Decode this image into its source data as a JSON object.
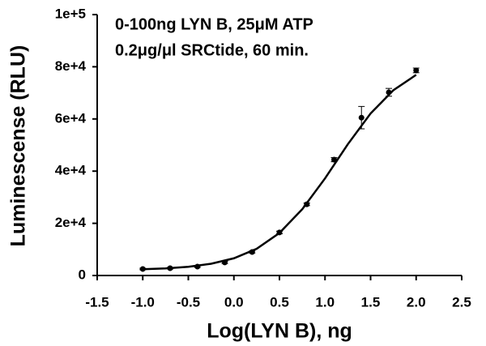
{
  "chart_data": {
    "type": "scatter",
    "annotations": [
      "0-100ng LYN B, 25μM ATP",
      "0.2μg/μl SRCtide, 60 min."
    ],
    "x_label": "Log(LYN B), ng",
    "y_label": "Luminescense (RLU)",
    "color": "#000000",
    "series": [
      {
        "x": [
          -1.0,
          -0.7,
          -0.4,
          -0.1,
          0.2,
          0.5,
          0.8,
          1.1,
          1.4,
          1.7,
          2.0
        ],
        "values": [
          2500,
          2800,
          3400,
          5000,
          9000,
          16500,
          27300,
          44400,
          60500,
          70200,
          78600
        ],
        "errors": [
          300,
          300,
          300,
          400,
          400,
          500,
          500,
          800,
          4300,
          1500,
          900
        ]
      }
    ],
    "fit": {
      "x": [
        -1.0,
        -0.75,
        -0.5,
        -0.25,
        0.0,
        0.25,
        0.5,
        0.75,
        1.0,
        1.25,
        1.5,
        1.75,
        2.0
      ],
      "values": [
        2400,
        2700,
        3350,
        4500,
        6600,
        10250,
        16300,
        25400,
        37200,
        50300,
        62100,
        71000,
        76900
      ]
    },
    "xlim": [
      -1.5,
      2.5
    ],
    "xticks": [
      -1.5,
      {
        "value": -1.0,
        "label": "-1.0"
      },
      -0.5,
      {
        "value": 0.0,
        "label": "0.0"
      },
      0.5,
      {
        "value": 1.0,
        "label": "1.0"
      },
      1.5,
      {
        "value": 2.0,
        "label": "2.0"
      },
      2.5
    ],
    "ylim": [
      0,
      100000
    ],
    "yticks": [
      0,
      {
        "value": 20000,
        "label": "2e+4"
      },
      {
        "value": 40000,
        "label": "4e+4"
      },
      {
        "value": 60000,
        "label": "6e+4"
      },
      {
        "value": 80000,
        "label": "8e+4"
      },
      {
        "value": 100000,
        "label": "1e+5"
      }
    ]
  }
}
